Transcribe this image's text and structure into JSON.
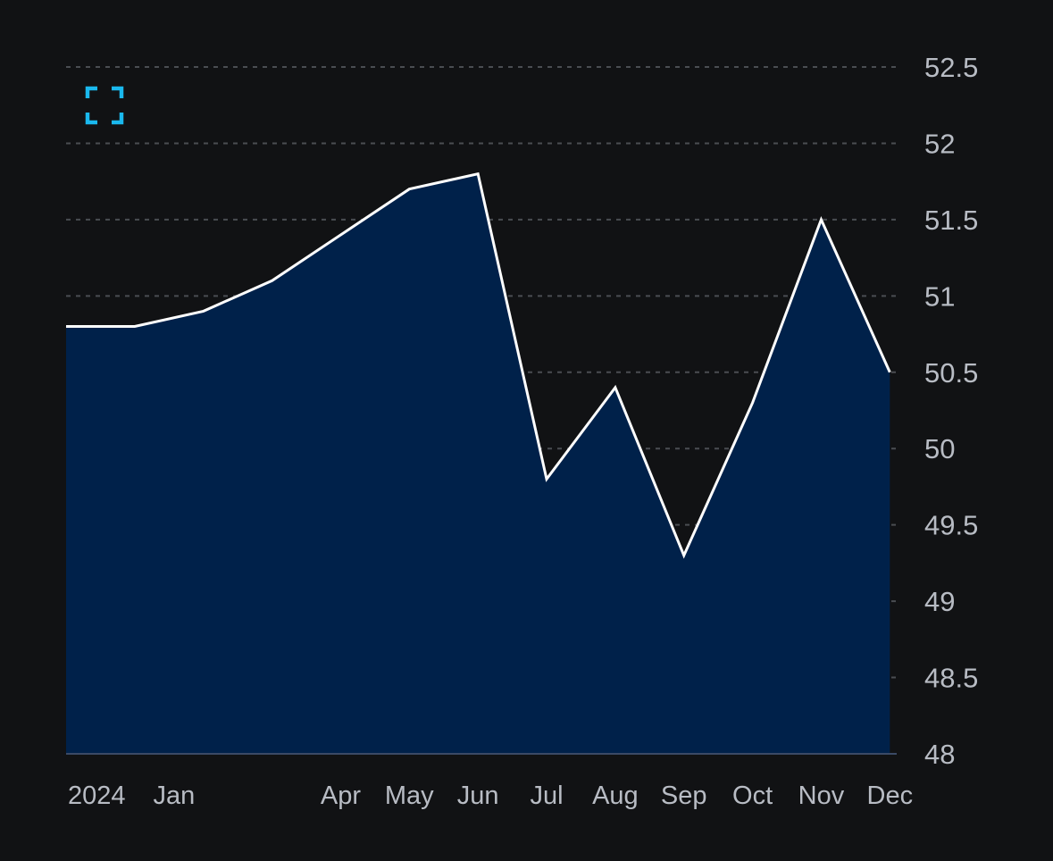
{
  "chart_data": {
    "type": "area",
    "x_tick_labels": [
      "2024",
      "Jan",
      "Apr",
      "May",
      "Jun",
      "Jul",
      "Aug",
      "Sep",
      "Oct",
      "Nov",
      "Dec"
    ],
    "series": [
      {
        "points": [
          {
            "x": "2023-12",
            "y": 50.8
          },
          {
            "x": "2024-01",
            "y": 50.8
          },
          {
            "x": "2024-02",
            "y": 50.9
          },
          {
            "x": "2024-03",
            "y": 51.1
          },
          {
            "x": "2024-04",
            "y": 51.4
          },
          {
            "x": "2024-05",
            "y": 51.7
          },
          {
            "x": "2024-06",
            "y": 51.8
          },
          {
            "x": "2024-07",
            "y": 49.8
          },
          {
            "x": "2024-08",
            "y": 50.4
          },
          {
            "x": "2024-09",
            "y": 49.3
          },
          {
            "x": "2024-10",
            "y": 50.3
          },
          {
            "x": "2024-11",
            "y": 51.5
          },
          {
            "x": "2024-12",
            "y": 50.5
          }
        ]
      }
    ],
    "y_ticks": [
      "52.5",
      "52",
      "51.5",
      "51",
      "50.5",
      "50",
      "49.5",
      "49",
      "48.5",
      "48"
    ],
    "ylim": [
      48,
      52.5
    ],
    "y_axis_side": "right",
    "grid": "horizontal dashed",
    "colors": {
      "background": "#111214",
      "area_fill": "#00214a",
      "line": "#ffffff",
      "grid": "#4a4d52",
      "tick_text": "#b8bcc4",
      "icon": "#1ab8ee"
    }
  },
  "controls": {
    "expand_icon": "expand-icon"
  }
}
